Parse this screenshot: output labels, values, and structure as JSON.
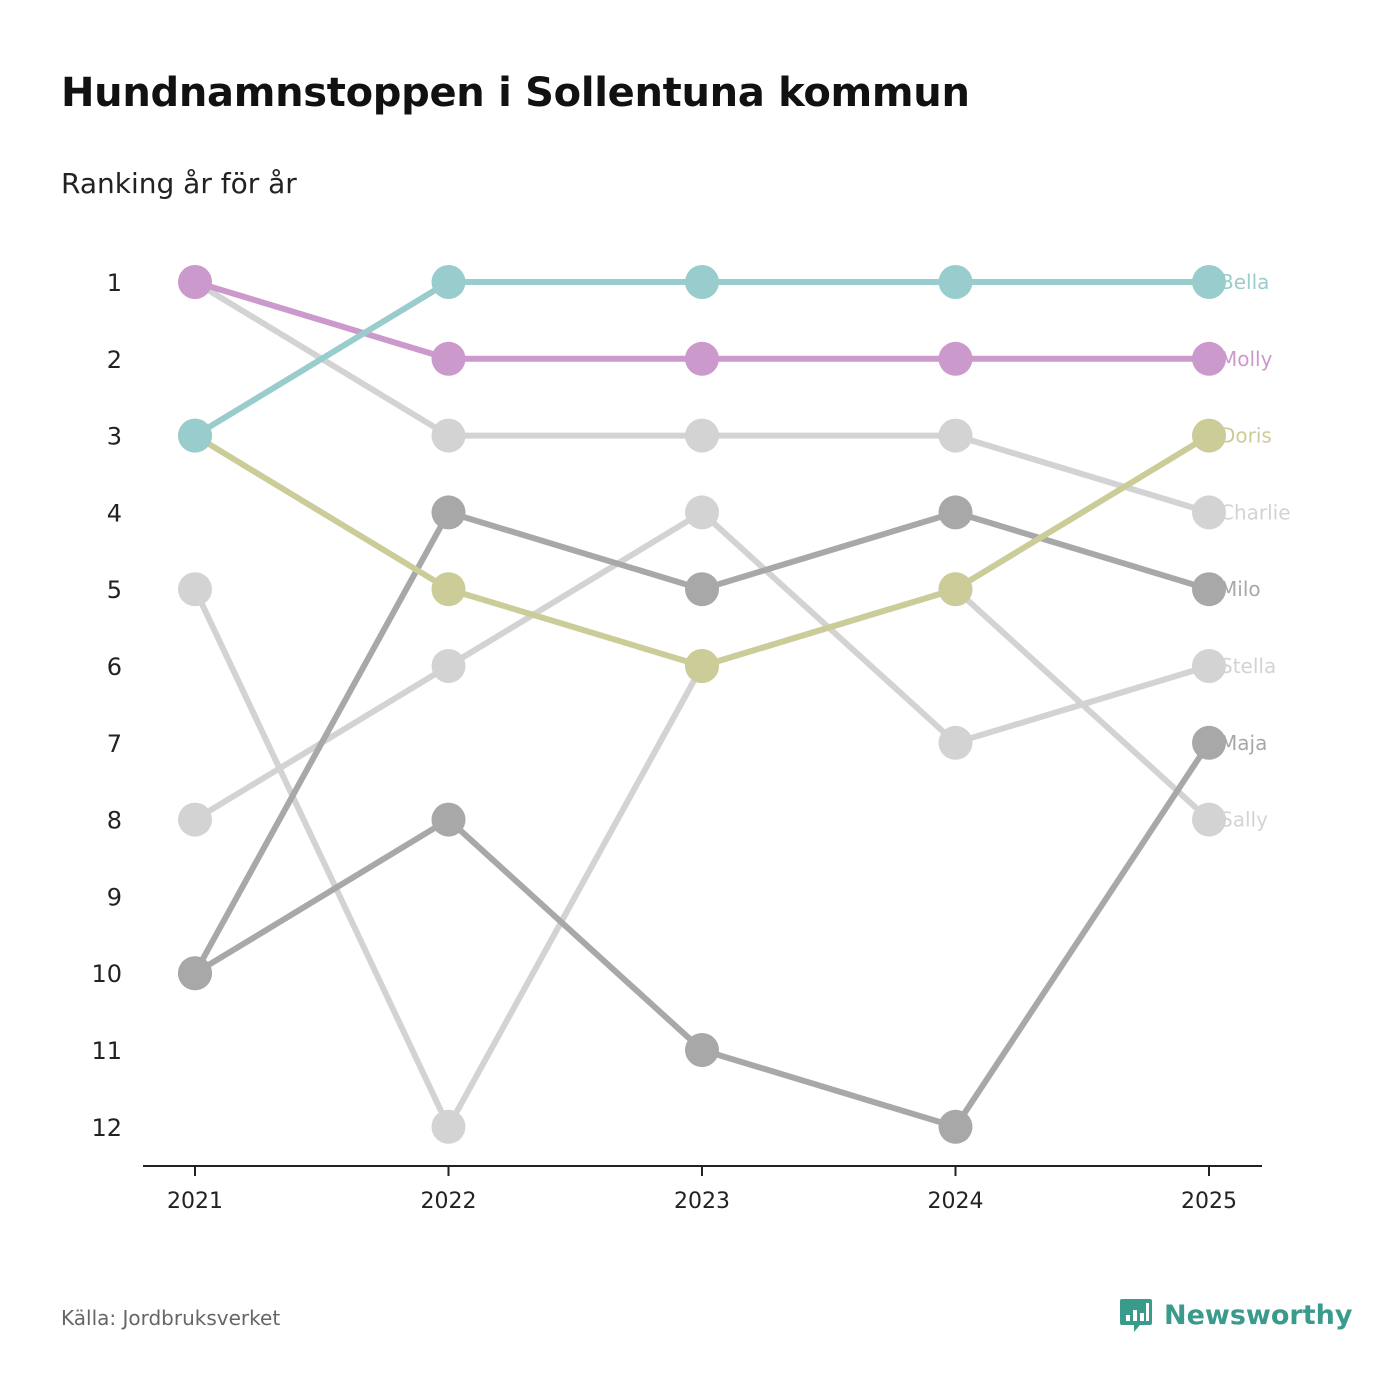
{
  "header": {
    "title": "Hundnamnstoppen i Sollentuna kommun",
    "subtitle": "Ranking år för år"
  },
  "footer": {
    "source": "Källa: Jordbruksverket",
    "brand": "Newsworthy",
    "brand_color": "#3a9a8c"
  },
  "chart_data": {
    "type": "line",
    "subtype": "bump",
    "title": "Hundnamnstoppen i Sollentuna kommun",
    "subtitle": "Ranking år för år",
    "xlabel": "",
    "ylabel": "",
    "x": [
      "2021",
      "2022",
      "2023",
      "2024",
      "2025"
    ],
    "y_ticks": [
      "1",
      "2",
      "3",
      "4",
      "5",
      "6",
      "7",
      "8",
      "9",
      "10",
      "11",
      "12"
    ],
    "ylim": [
      1,
      12
    ],
    "y_inverted": true,
    "series": [
      {
        "name": "Charlie",
        "values": [
          1,
          3,
          3,
          3,
          4
        ],
        "color": "#d3d3d3"
      },
      {
        "name": "Stella",
        "values": [
          8,
          6,
          4,
          7,
          6
        ],
        "color": "#d3d3d3"
      },
      {
        "name": "Sally",
        "values": [
          5,
          12,
          6,
          5,
          8
        ],
        "color": "#d3d3d3"
      },
      {
        "name": "Milo",
        "values": [
          10,
          4,
          5,
          4,
          5
        ],
        "color": "#a8a8a8"
      },
      {
        "name": "Maja",
        "values": [
          10,
          8,
          11,
          12,
          7
        ],
        "color": "#a8a8a8"
      },
      {
        "name": "Doris",
        "values": [
          3,
          5,
          6,
          5,
          3
        ],
        "color": "#cccc99"
      },
      {
        "name": "Molly",
        "values": [
          1,
          2,
          2,
          2,
          2
        ],
        "color": "#cc99cc"
      },
      {
        "name": "Bella",
        "values": [
          3,
          1,
          1,
          1,
          1
        ],
        "color": "#99cccc"
      }
    ]
  }
}
